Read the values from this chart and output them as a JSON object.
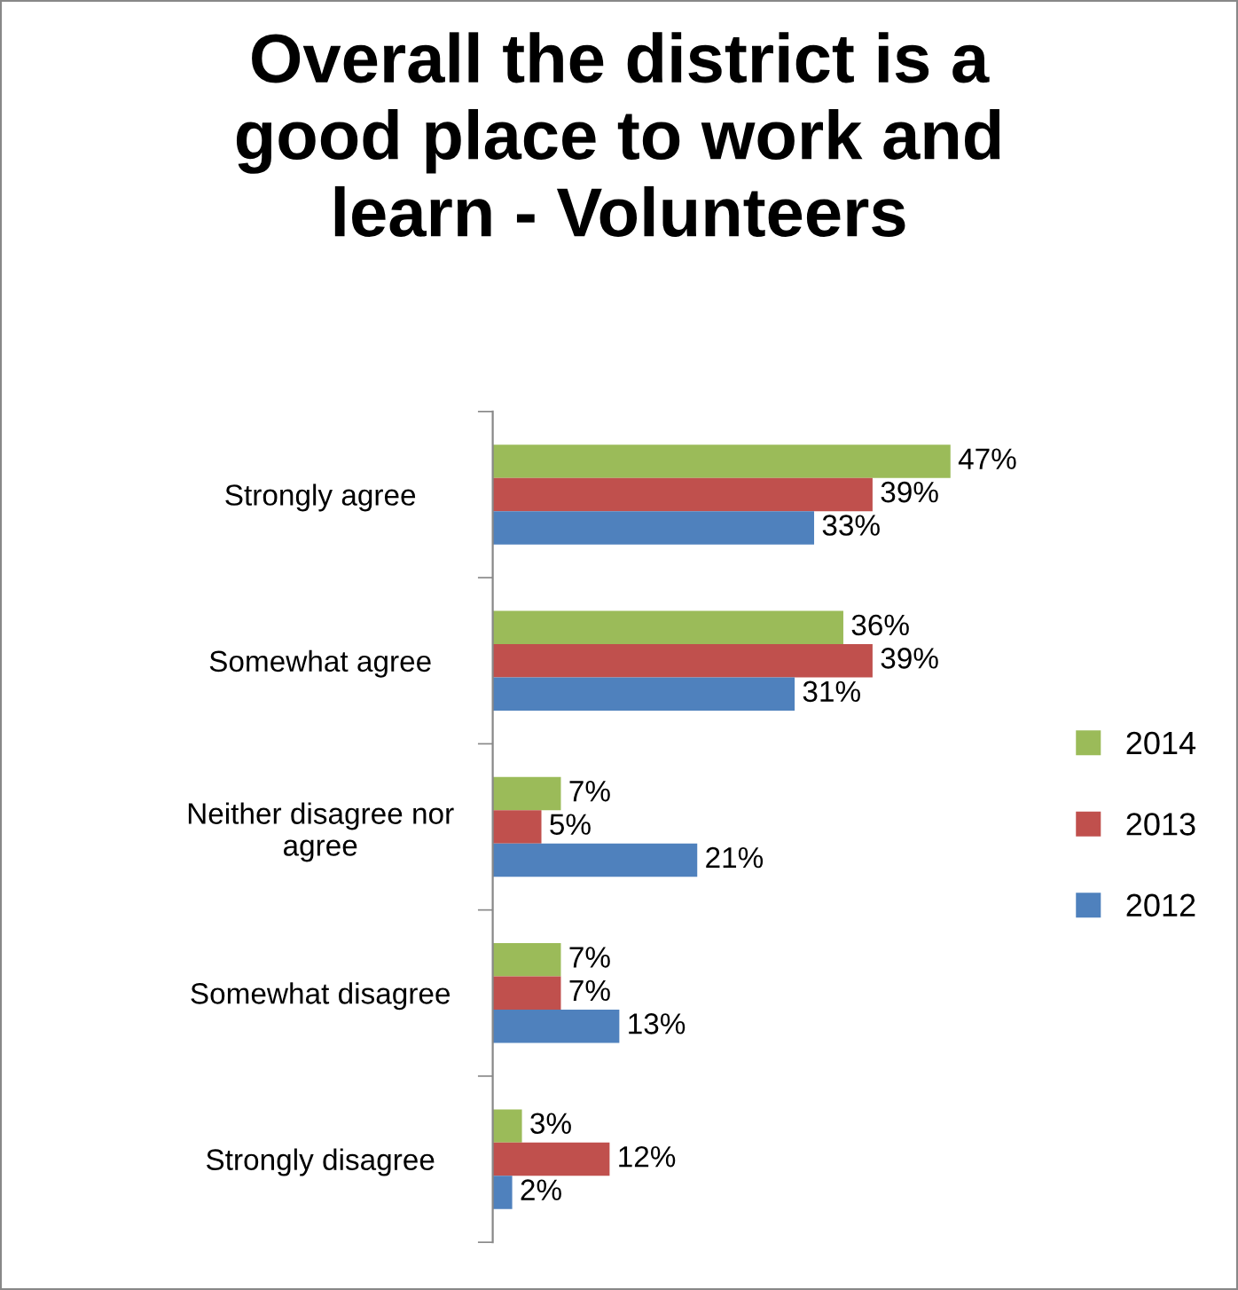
{
  "chart_data": {
    "type": "bar",
    "orientation": "horizontal",
    "title": "Overall the district is a\ngood place to work and\nlearn - Volunteers",
    "categories": [
      "Strongly agree",
      "Somewhat agree",
      "Neither disagree nor\nagree",
      "Somewhat disagree",
      "Strongly disagree"
    ],
    "series": [
      {
        "name": "2014",
        "color": "#9bbb59",
        "values": [
          47,
          36,
          7,
          7,
          3
        ],
        "value_labels": [
          "47%",
          "36%",
          "7%",
          "7%",
          "3%"
        ]
      },
      {
        "name": "2013",
        "color": "#c0504d",
        "values": [
          39,
          39,
          5,
          7,
          12
        ],
        "value_labels": [
          "39%",
          "39%",
          "5%",
          "7%",
          "12%"
        ]
      },
      {
        "name": "2012",
        "color": "#4f81bd",
        "values": [
          33,
          31,
          21,
          13,
          2
        ],
        "value_labels": [
          "33%",
          "31%",
          "21%",
          "13%",
          "2%"
        ]
      }
    ],
    "legend": "right",
    "grid": false
  }
}
